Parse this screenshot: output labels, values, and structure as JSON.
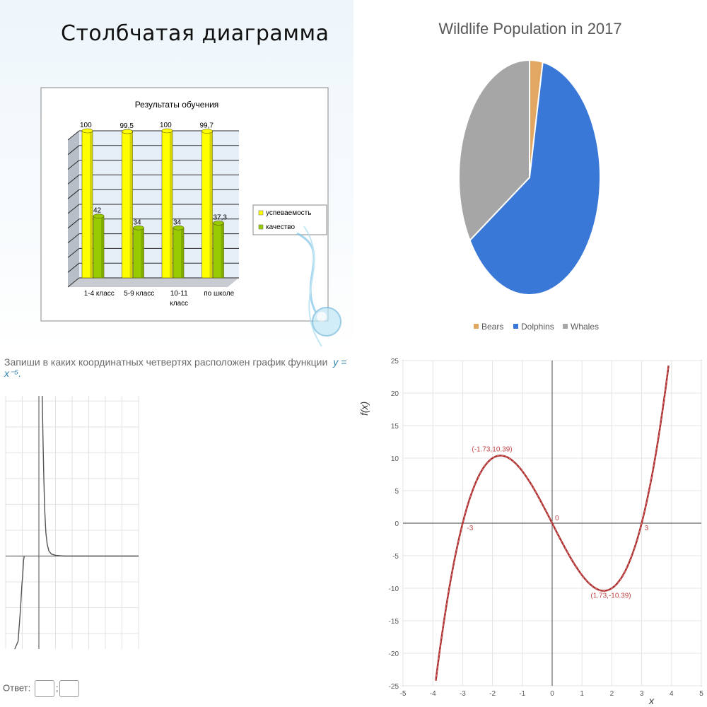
{
  "slide": {
    "title": "Столбчатая диаграмма"
  },
  "task": {
    "prompt": "Запиши в каких координатных четвертях расположен график функции",
    "formula": "y = x⁻⁵.",
    "answer_label": "Ответ:",
    "separator": ";"
  },
  "chart_data": [
    {
      "type": "bar",
      "title": "Результаты обучения",
      "categories": [
        "1-4 класс",
        "5-9 класс",
        "10-11 класс",
        "по школе"
      ],
      "series": [
        {
          "name": "успеваемость",
          "values": [
            100,
            99.5,
            100,
            99.7
          ],
          "labels": [
            "100",
            "99,5",
            "100",
            "99,7"
          ],
          "color": "#ffff00"
        },
        {
          "name": "качество",
          "values": [
            42,
            34,
            34,
            37.3
          ],
          "labels": [
            "42",
            "34",
            "34",
            "37,3"
          ],
          "color": "#99cc00"
        }
      ],
      "ylim": [
        0,
        100
      ],
      "grid": true,
      "legend": "right"
    },
    {
      "type": "pie",
      "title": "Wildlife Population in 2017",
      "slices": [
        {
          "label": "Bears",
          "value": 3,
          "color": "#e3a764"
        },
        {
          "label": "Dolphins",
          "value": 63,
          "color": "#3a78d8"
        },
        {
          "label": "Whales",
          "value": 34,
          "color": "#a6a6a6"
        }
      ],
      "legend": "bottom"
    },
    {
      "type": "line",
      "title": "",
      "xlim": [
        -2,
        6
      ],
      "ylim": [
        -3.6,
        6.2
      ],
      "grid": true,
      "series": [
        {
          "points": [
            [
              -1.45,
              -3.6
            ],
            [
              -1.25,
              -3.3
            ],
            [
              -1.1,
              -2.0
            ],
            [
              -1.02,
              -1.1
            ],
            [
              -0.98,
              -0.8
            ],
            [
              -0.92,
              -0.15
            ],
            [
              -0.88,
              0.0
            ]
          ],
          "color": "#555555"
        },
        {
          "points": [
            [
              0.2,
              6.2
            ],
            [
              0.25,
              4.4
            ],
            [
              0.3,
              3.0
            ],
            [
              0.35,
              1.8
            ],
            [
              0.42,
              0.9
            ],
            [
              0.5,
              0.45
            ],
            [
              0.6,
              0.2
            ],
            [
              0.75,
              0.08
            ],
            [
              1.0,
              0.03
            ],
            [
              1.5,
              0.0
            ],
            [
              6.0,
              0.0
            ]
          ],
          "color": "#555555"
        }
      ]
    },
    {
      "type": "line",
      "title": "",
      "xlabel": "x",
      "ylabel": "f(x)",
      "xlim": [
        -5,
        5
      ],
      "ylim": [
        -25,
        25
      ],
      "xticks": [
        -5,
        -4,
        -3,
        -2,
        -1,
        0,
        1,
        2,
        3,
        4,
        5
      ],
      "yticks": [
        25,
        20,
        15,
        10,
        5,
        0,
        -5,
        -10,
        -15,
        -20,
        -25
      ],
      "grid": true,
      "series": [
        {
          "function": "x^3 - 9x",
          "xrange": [
            -4.0,
            4.0
          ],
          "color": "#a83232"
        }
      ],
      "annotations": [
        {
          "x": -1.73,
          "y": 10.39,
          "text": "(-1.73,10.39)"
        },
        {
          "x": 1.73,
          "y": -10.39,
          "text": "(1.73,-10.39)"
        },
        {
          "x": -3,
          "y": 0,
          "text": "-3"
        },
        {
          "x": 0,
          "y": 0,
          "text": "0"
        },
        {
          "x": 3,
          "y": 0,
          "text": "3"
        }
      ]
    }
  ]
}
